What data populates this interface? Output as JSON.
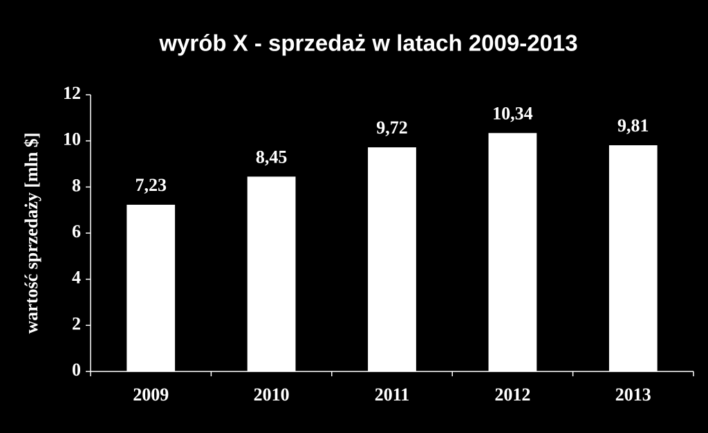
{
  "chart_data": {
    "type": "bar",
    "title": "wyrób X - sprzedaż w latach 2009-2013",
    "y_label": "wartość sprzedaży [mln $]",
    "categories": [
      "2009",
      "2010",
      "2011",
      "2012",
      "2013"
    ],
    "values": [
      7.23,
      8.45,
      9.72,
      10.34,
      9.81
    ],
    "value_labels": [
      "7,23",
      "8,45",
      "9,72",
      "10,34",
      "9,81"
    ],
    "color": "#ffffff",
    "ylim": [
      0,
      12
    ],
    "yticks": [
      0,
      2,
      4,
      6,
      8,
      10,
      12
    ],
    "grid": false
  }
}
